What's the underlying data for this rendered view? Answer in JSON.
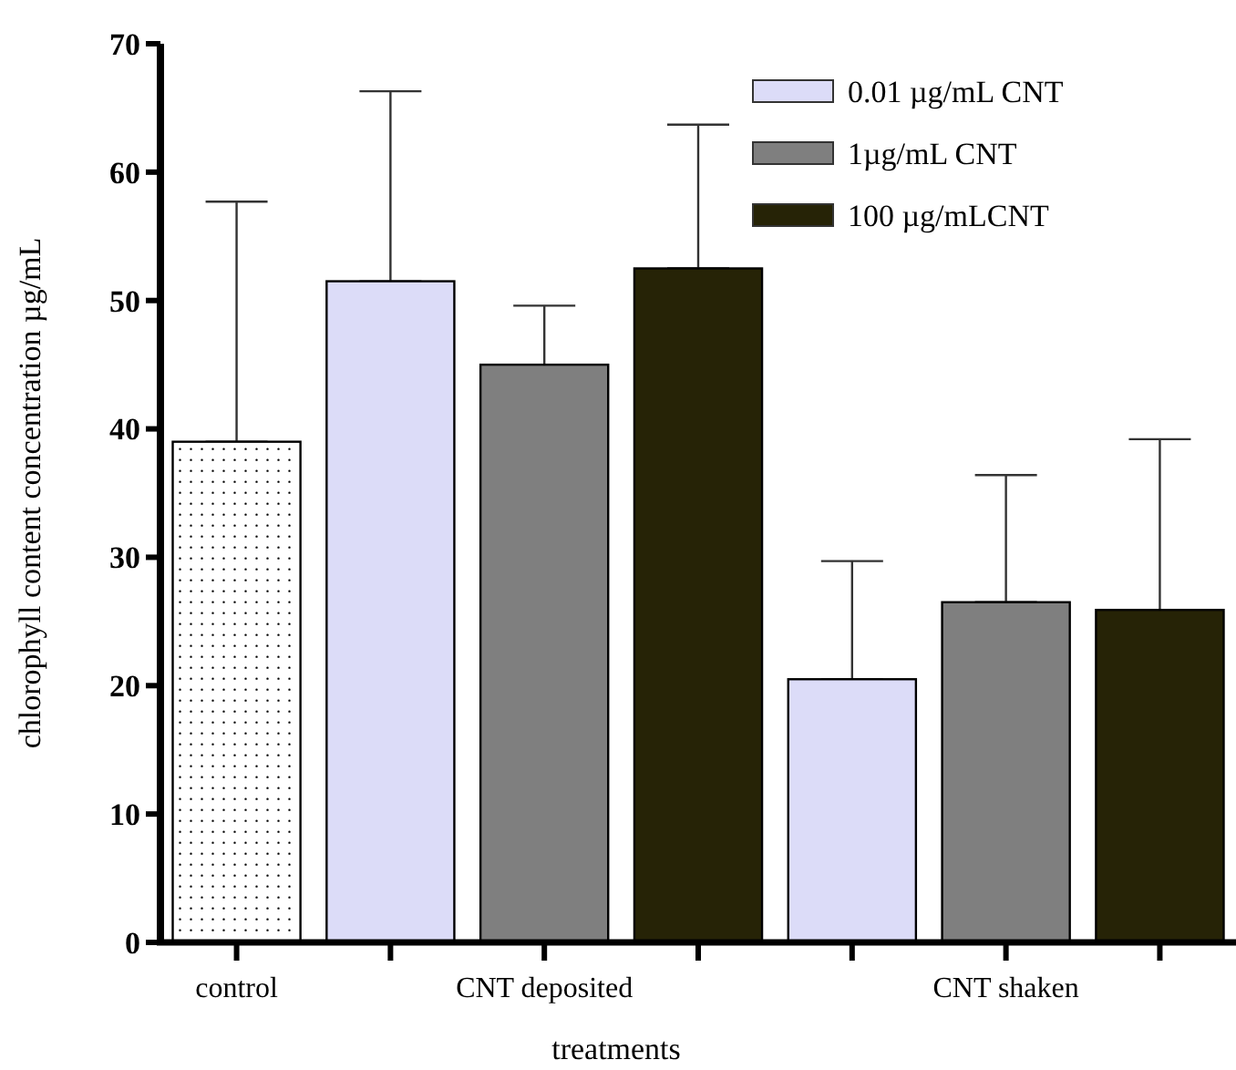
{
  "chart_data": {
    "type": "bar",
    "xlabel": "treatments",
    "ylabel": "chlorophyll content concentration µg/mL",
    "categories": [
      "control",
      null,
      "CNT deposited",
      null,
      null,
      "CNT shaken",
      null
    ],
    "series": [
      {
        "color": "#ffffff",
        "values": [
          39,
          null,
          null,
          null,
          null,
          null,
          null
        ],
        "errors": [
          [
            39,
            57.7
          ],
          null,
          null,
          null,
          null,
          null,
          null
        ]
      },
      {
        "name": "0.01  µg/mL CNT",
        "color": "#dcdcf8",
        "values": [
          null,
          51.5,
          null,
          null,
          20.5,
          null,
          null
        ],
        "errors": [
          null,
          [
            51.5,
            66.3
          ],
          null,
          null,
          [
            20.5,
            29.7
          ],
          null,
          null
        ]
      },
      {
        "name": "1µg/mL CNT",
        "color": "#7f7f7f",
        "values": [
          null,
          null,
          45,
          null,
          null,
          26.5,
          null
        ],
        "errors": [
          null,
          null,
          [
            45,
            49.6
          ],
          null,
          null,
          [
            26.5,
            36.4
          ],
          null
        ]
      },
      {
        "name": "100 µg/mLCNT",
        "color": "#262306",
        "values": [
          null,
          null,
          null,
          52.5,
          null,
          null,
          25.9
        ],
        "errors": [
          null,
          null,
          null,
          [
            52.5,
            63.7
          ],
          null,
          null,
          [
            25.9,
            39.2
          ]
        ]
      }
    ],
    "ylim": [
      0,
      70
    ],
    "yticks": [
      0,
      10,
      20,
      30,
      40,
      50,
      60,
      70
    ],
    "legend": "top right",
    "grid": false
  }
}
